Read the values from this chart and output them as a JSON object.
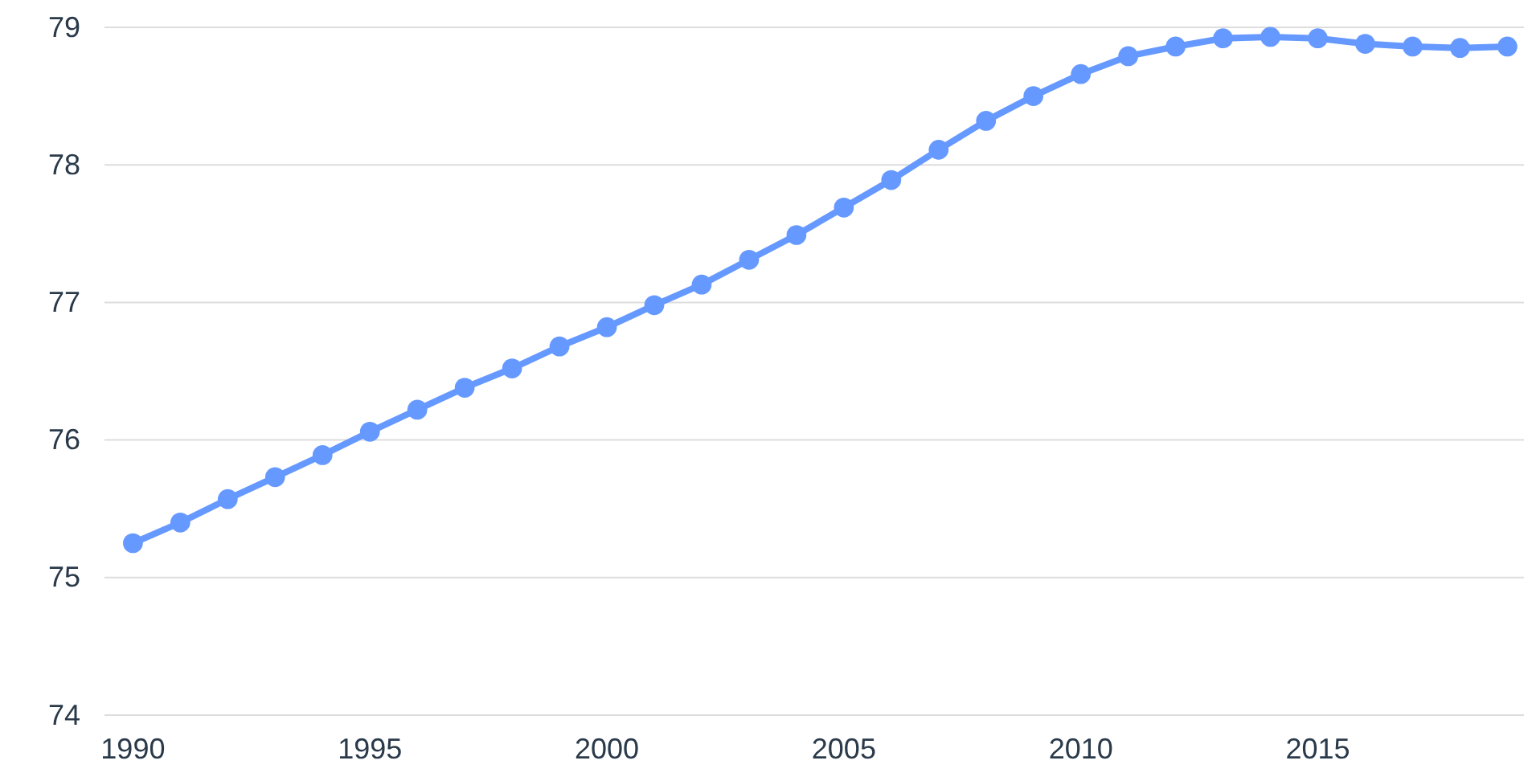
{
  "chart_data": {
    "type": "line",
    "x": [
      1990,
      1991,
      1992,
      1993,
      1994,
      1995,
      1996,
      1997,
      1998,
      1999,
      2000,
      2001,
      2002,
      2003,
      2004,
      2005,
      2006,
      2007,
      2008,
      2009,
      2010,
      2011,
      2012,
      2013,
      2014,
      2015,
      2016,
      2017,
      2018,
      2019
    ],
    "series": [
      {
        "color": "#6699ff",
        "values": [
          75.25,
          75.4,
          75.57,
          75.73,
          75.89,
          76.06,
          76.22,
          76.38,
          76.52,
          76.68,
          76.82,
          76.98,
          77.13,
          77.31,
          77.49,
          77.69,
          77.89,
          78.11,
          78.32,
          78.5,
          78.66,
          78.79,
          78.86,
          78.92,
          78.93,
          78.92,
          78.88,
          78.86,
          78.85,
          78.86
        ]
      }
    ],
    "xlim": [
      1989.4,
      2019.35
    ],
    "xticks": [
      1990,
      1995,
      2000,
      2005,
      2010,
      2015
    ],
    "ylim": [
      74,
      79
    ],
    "yticks": [
      74,
      75,
      76,
      77,
      78,
      79
    ],
    "grid": "y",
    "marker": "circle",
    "line_style": "solid"
  }
}
